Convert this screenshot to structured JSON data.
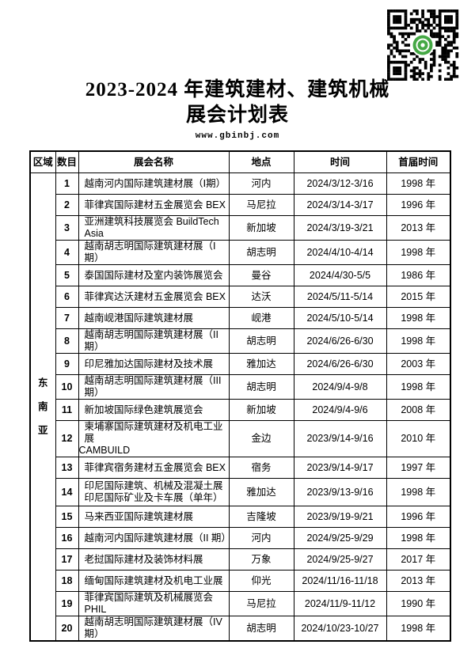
{
  "page": {
    "title_line1": "2023-2024 年建筑建材、建筑机械",
    "title_line2": "展会计划表",
    "website": "www.gbinbj.com"
  },
  "colors": {
    "qr_logo_green": "#45a845",
    "table_border": "#000000",
    "background": "#ffffff"
  },
  "icons": {
    "qr_code": "qr-code-with-green-logo"
  },
  "table": {
    "headers": {
      "region": "区域",
      "no": "数目",
      "name": "展会名称",
      "location": "地点",
      "time": "时间",
      "first": "首届时间"
    },
    "region_label": "东南亚",
    "rows": [
      {
        "no": "1",
        "name": "越南河内国际建筑建材展（Ⅰ期）",
        "location": "河内",
        "time": "2024/3/12-3/16",
        "first": "1998 年"
      },
      {
        "no": "2",
        "name": "菲律宾国际建材五金展览会 BEX",
        "location": "马尼拉",
        "time": "2024/3/14-3/17",
        "first": "1996 年"
      },
      {
        "no": "3",
        "name": "亚洲建筑科技展览会 BuildTech Asia",
        "location": "新加坡",
        "time": "2024/3/19-3/21",
        "first": "2013 年"
      },
      {
        "no": "4",
        "name": "越南胡志明国际建筑建材展（I 期）",
        "location": "胡志明",
        "time": "2024/4/10-4/14",
        "first": "1998 年"
      },
      {
        "no": "5",
        "name": "泰国国际建材及室内装饰展览会",
        "location": "曼谷",
        "time": "2024/4/30-5/5",
        "first": "1986 年"
      },
      {
        "no": "6",
        "name": "菲律宾达沃建材五金展览会 BEX",
        "location": "达沃",
        "time": "2024/5/11-5/14",
        "first": "2015 年"
      },
      {
        "no": "7",
        "name": "越南岘港国际建筑建材展",
        "location": "岘港",
        "time": "2024/5/10-5/14",
        "first": "1998 年"
      },
      {
        "no": "8",
        "name": "越南胡志明国际建筑建材展（II 期）",
        "location": "胡志明",
        "time": "2024/6/26-6/30",
        "first": "1998 年"
      },
      {
        "no": "9",
        "name": "印尼雅加达国际建材及技术展",
        "location": "雅加达",
        "time": "2024/6/26-6/30",
        "first": "2003 年"
      },
      {
        "no": "10",
        "name": "越南胡志明国际建筑建材展（III 期）",
        "location": "胡志明",
        "time": "2024/9/4-9/8",
        "first": "1998 年"
      },
      {
        "no": "11",
        "name": "新加坡国际绿色建筑展览会",
        "location": "新加坡",
        "time": "2024/9/4-9/6",
        "first": "2008 年"
      },
      {
        "no": "12",
        "name": "柬埔寨国际建筑建材及机电工业展",
        "name2": "CAMBUILD",
        "name2_flush": true,
        "location": "金边",
        "time": "2023/9/14-9/16",
        "first": "2010 年"
      },
      {
        "no": "13",
        "name": "菲律宾宿务建材五金展览会 BEX",
        "location": "宿务",
        "time": "2023/9/14-9/17",
        "first": "1997 年"
      },
      {
        "no": "14",
        "name": "印尼国际建筑、机械及混凝土展",
        "name2": "印尼国际矿业及卡车展（单年）",
        "name2_flush": false,
        "location": "雅加达",
        "time": "2023/9/13-9/16",
        "first": "1998 年"
      },
      {
        "no": "15",
        "name": "马来西亚国际建筑建材展",
        "location": "吉隆坡",
        "time": "2023/9/19-9/21",
        "first": "1996 年"
      },
      {
        "no": "16",
        "name": "越南河内国际建筑建材展（II 期）",
        "location": "河内",
        "time": "2024/9/25-9/29",
        "first": "1998 年"
      },
      {
        "no": "17",
        "name": "老挝国际建材及装饰材料展",
        "location": "万象",
        "time": "2024/9/25-9/27",
        "first": "2017 年"
      },
      {
        "no": "18",
        "name": "缅甸国际建筑建材及机电工业展",
        "location": "仰光",
        "time": "2024/11/16-11/18",
        "first": "2013 年"
      },
      {
        "no": "19",
        "name": "菲律宾国际建筑及机械展览会 PHIL",
        "location": "马尼拉",
        "time": "2024/11/9-11/12",
        "first": "1990 年"
      },
      {
        "no": "20",
        "name": "越南胡志明国际建筑建材展（IV 期）",
        "location": "胡志明",
        "time": "2024/10/23-10/27",
        "first": "1998 年"
      }
    ]
  }
}
